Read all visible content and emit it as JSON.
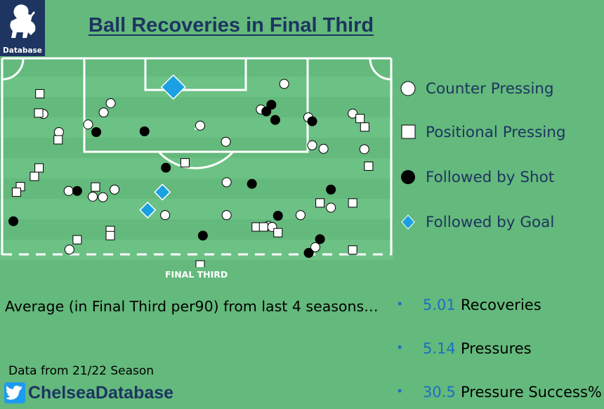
{
  "logo": {
    "text": "Database",
    "icon": "lion-crest-icon"
  },
  "header": {
    "title": "Ball Recoveries in Final Third"
  },
  "pitch": {
    "label": "FINAL THIRD"
  },
  "legend": [
    {
      "label": "Counter Pressing",
      "marker": "circle",
      "fill": "#ffffff"
    },
    {
      "label": "Positional Pressing",
      "marker": "square",
      "fill": "#ffffff"
    },
    {
      "label": "Followed by Shot",
      "marker": "circle",
      "fill": "#000000"
    },
    {
      "label": "Followed by Goal",
      "marker": "diamond",
      "fill": "#1ba1e2"
    }
  ],
  "summary": {
    "heading": "Average (in Final Third per90) from last 4 seasons…",
    "stats": [
      {
        "value": "5.01",
        "label": "Recoveries"
      },
      {
        "value": "5.14",
        "label": "Pressures"
      },
      {
        "value": "30.5",
        "label": "Pressure Success%"
      }
    ]
  },
  "footer": {
    "source": "Data from 21/22 Season",
    "handle": "ChelseaDatabase",
    "icon": "twitter-bird-icon"
  },
  "colors": {
    "pitch": "#64b97c",
    "stripe": "#6cc184",
    "navy": "#1d3560",
    "accent_blue": "#1a6fc4",
    "goal_blue": "#1ba1e2"
  },
  "chart_data": {
    "type": "scatter",
    "title": "Ball Recoveries in Final Third",
    "xlim": [
      0,
      100
    ],
    "ylim": [
      0,
      100
    ],
    "categories": [
      "Counter Pressing",
      "Positional Pressing",
      "Followed by Shot",
      "Followed by Goal"
    ],
    "points": [
      {
        "type": "counter",
        "x": 72.5,
        "y": 13.0
      },
      {
        "type": "counter",
        "x": 27.9,
        "y": 22.8
      },
      {
        "type": "counter",
        "x": 26.1,
        "y": 27.5
      },
      {
        "type": "counter",
        "x": 22.1,
        "y": 33.6
      },
      {
        "type": "counter",
        "x": 10.6,
        "y": 28.3
      },
      {
        "type": "counter",
        "x": 14.6,
        "y": 37.5
      },
      {
        "type": "counter",
        "x": 50.9,
        "y": 34.2
      },
      {
        "type": "counter",
        "x": 66.5,
        "y": 26.0
      },
      {
        "type": "counter",
        "x": 57.5,
        "y": 42.4
      },
      {
        "type": "counter",
        "x": 78.7,
        "y": 30.0
      },
      {
        "type": "counter",
        "x": 79.7,
        "y": 44.2
      },
      {
        "type": "counter",
        "x": 82.6,
        "y": 46.0
      },
      {
        "type": "counter",
        "x": 90.1,
        "y": 28.1
      },
      {
        "type": "counter",
        "x": 93.1,
        "y": 46.2
      },
      {
        "type": "counter",
        "x": 17.1,
        "y": 67.4
      },
      {
        "type": "counter",
        "x": 28.9,
        "y": 66.7
      },
      {
        "type": "counter",
        "x": 23.3,
        "y": 70.3
      },
      {
        "type": "counter",
        "x": 25.9,
        "y": 70.6
      },
      {
        "type": "counter",
        "x": 57.7,
        "y": 63.0
      },
      {
        "type": "counter",
        "x": 41.9,
        "y": 79.7
      },
      {
        "type": "counter",
        "x": 57.7,
        "y": 79.7
      },
      {
        "type": "counter",
        "x": 68.4,
        "y": 85.2
      },
      {
        "type": "counter",
        "x": 76.7,
        "y": 79.7
      },
      {
        "type": "counter",
        "x": 84.5,
        "y": 75.9
      },
      {
        "type": "counter",
        "x": 80.5,
        "y": 96.0
      },
      {
        "type": "counter",
        "x": 17.3,
        "y": 97.2
      },
      {
        "type": "counter",
        "x": 69.4,
        "y": 85.7
      },
      {
        "type": "positional",
        "x": 9.7,
        "y": 18.0
      },
      {
        "type": "positional",
        "x": 9.4,
        "y": 27.8
      },
      {
        "type": "positional",
        "x": 14.4,
        "y": 41.4
      },
      {
        "type": "positional",
        "x": 9.5,
        "y": 55.7
      },
      {
        "type": "positional",
        "x": 8.3,
        "y": 60.0
      },
      {
        "type": "positional",
        "x": 4.7,
        "y": 65.2
      },
      {
        "type": "positional",
        "x": 3.7,
        "y": 68.0
      },
      {
        "type": "positional",
        "x": 47.0,
        "y": 53.1
      },
      {
        "type": "positional",
        "x": 24.0,
        "y": 65.4
      },
      {
        "type": "positional",
        "x": 92.0,
        "y": 30.6
      },
      {
        "type": "positional",
        "x": 93.2,
        "y": 34.9
      },
      {
        "type": "positional",
        "x": 94.2,
        "y": 54.8
      },
      {
        "type": "positional",
        "x": 81.7,
        "y": 73.5
      },
      {
        "type": "positional",
        "x": 90.1,
        "y": 73.5
      },
      {
        "type": "positional",
        "x": 27.8,
        "y": 87.5
      },
      {
        "type": "positional",
        "x": 27.8,
        "y": 90.1
      },
      {
        "type": "positional",
        "x": 19.3,
        "y": 92.2
      },
      {
        "type": "positional",
        "x": 65.3,
        "y": 85.7
      },
      {
        "type": "positional",
        "x": 67.2,
        "y": 85.7
      },
      {
        "type": "positional",
        "x": 70.9,
        "y": 88.6
      },
      {
        "type": "positional",
        "x": 90.1,
        "y": 97.4
      },
      {
        "type": "positional",
        "x": 50.9,
        "y": 105.0
      },
      {
        "type": "shot",
        "x": 69.2,
        "y": 23.6
      },
      {
        "type": "shot",
        "x": 67.9,
        "y": 27.0
      },
      {
        "type": "shot",
        "x": 70.2,
        "y": 31.3
      },
      {
        "type": "shot",
        "x": 79.7,
        "y": 32.0
      },
      {
        "type": "shot",
        "x": 36.6,
        "y": 37.1
      },
      {
        "type": "shot",
        "x": 24.2,
        "y": 37.5
      },
      {
        "type": "shot",
        "x": 42.1,
        "y": 55.6
      },
      {
        "type": "shot",
        "x": 19.3,
        "y": 67.4
      },
      {
        "type": "shot",
        "x": 64.2,
        "y": 63.8
      },
      {
        "type": "shot",
        "x": 84.5,
        "y": 66.7
      },
      {
        "type": "shot",
        "x": 70.9,
        "y": 80.0
      },
      {
        "type": "shot",
        "x": 51.6,
        "y": 90.1
      },
      {
        "type": "shot",
        "x": 81.7,
        "y": 91.9
      },
      {
        "type": "shot",
        "x": 78.8,
        "y": 98.9
      },
      {
        "type": "shot",
        "x": 2.9,
        "y": 82.8
      },
      {
        "type": "goal",
        "x": 44.0,
        "y": 14.6
      },
      {
        "type": "goal",
        "x": 41.2,
        "y": 68.0
      },
      {
        "type": "goal",
        "x": 37.4,
        "y": 77.1
      }
    ]
  }
}
